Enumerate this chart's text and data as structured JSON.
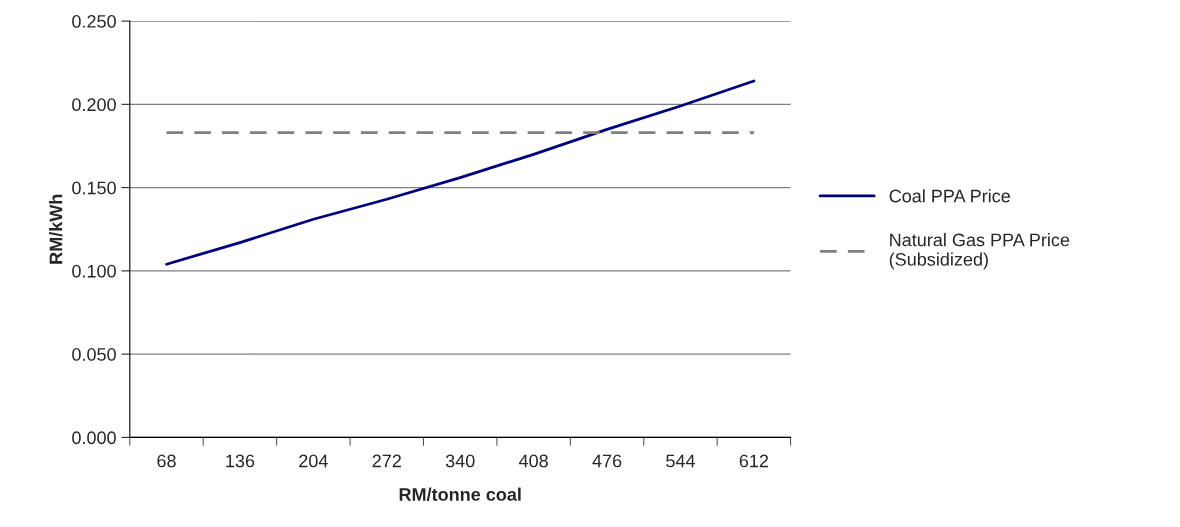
{
  "chart_data": {
    "type": "line",
    "xlabel": "RM/tonne coal",
    "ylabel": "RM/kWh",
    "categories": [
      "68",
      "136",
      "204",
      "272",
      "340",
      "408",
      "476",
      "544",
      "612"
    ],
    "series": [
      {
        "name": "Coal PPA Price",
        "color": "#000080",
        "line_style": "solid",
        "values": [
          0.104,
          0.117,
          0.131,
          0.143,
          0.156,
          0.17,
          0.185,
          0.199,
          0.214
        ]
      },
      {
        "name": "Natural Gas PPA Price\n(Subsidized)",
        "color": "#808080",
        "line_style": "dashed",
        "values": [
          0.183,
          0.183,
          0.183,
          0.183,
          0.183,
          0.183,
          0.183,
          0.183,
          0.183
        ]
      }
    ],
    "ylim": [
      0,
      0.25
    ],
    "yticks": [
      {
        "value": 0,
        "label": "0.000"
      },
      {
        "value": 0.05,
        "label": "0.050"
      },
      {
        "value": 0.1,
        "label": "0.100"
      },
      {
        "value": 0.15,
        "label": "0.150"
      },
      {
        "value": 0.2,
        "label": "0.200"
      },
      {
        "value": 0.25,
        "label": "0.250"
      }
    ],
    "grid": "y",
    "legend": "right",
    "marker": "none"
  }
}
